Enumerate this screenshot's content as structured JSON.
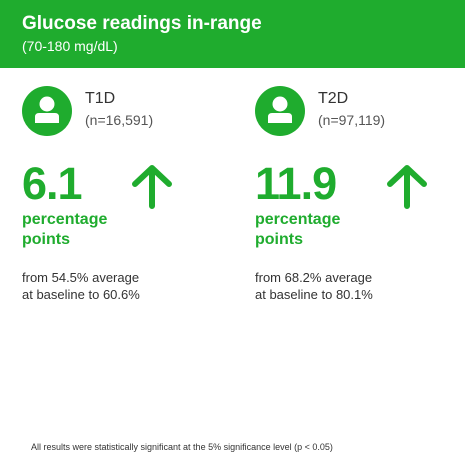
{
  "header": {
    "title": "Glucose readings in-range",
    "subtitle": "(70-180 mg/dL)"
  },
  "groups": [
    {
      "label": "T1D",
      "n": "(n=16,591)",
      "value": "6.1",
      "unit_line1": "percentage",
      "unit_line2": "points",
      "desc_line1": "from 54.5% average",
      "desc_line2": "at baseline to 60.6%",
      "icon": "person-icon",
      "trend_icon": "arrow-up-icon"
    },
    {
      "label": "T2D",
      "n": "(n=97,119)",
      "value": "11.9",
      "unit_line1": "percentage",
      "unit_line2": "points",
      "desc_line1": "from 68.2% average",
      "desc_line2": "at baseline to 80.1%",
      "icon": "person-icon",
      "trend_icon": "arrow-up-icon"
    }
  ],
  "footnote": "All results were statistically significant at the 5% significance level (p < 0.05)",
  "colors": {
    "accent": "#1fac2e",
    "text": "#333333",
    "background": "#ffffff"
  }
}
